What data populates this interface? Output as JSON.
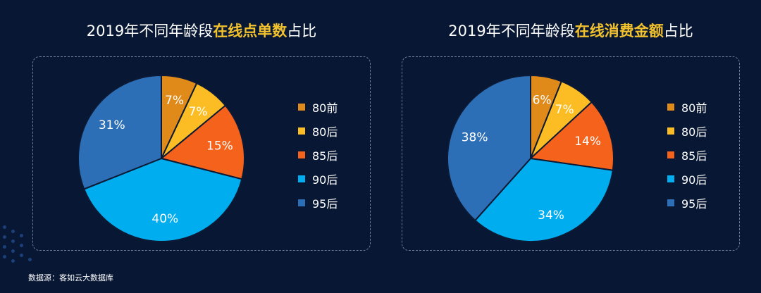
{
  "source": "数据源：客如云大数据库",
  "colors": [
    "#e08a1a",
    "#fbbd23",
    "#f4621b",
    "#00aef0",
    "#2d6fb7"
  ],
  "charts": [
    {
      "title_prefix": "2019年不同年龄段",
      "title_highlight": "在线点单数",
      "title_suffix": "占比"
    },
    {
      "title_prefix": "2019年不同年龄段",
      "title_highlight": "在线消费金额",
      "title_suffix": "占比"
    }
  ],
  "chart_data": [
    {
      "type": "pie",
      "title": "2019年不同年龄段在线点单数占比",
      "categories": [
        "80前",
        "80后",
        "85后",
        "90后",
        "95后"
      ],
      "values": [
        7,
        7,
        15,
        40,
        31
      ],
      "labels": [
        "7%",
        "7%",
        "15%",
        "40%",
        "31%"
      ],
      "legend": "right"
    },
    {
      "type": "pie",
      "title": "2019年不同年龄段在线消费金额占比",
      "categories": [
        "80前",
        "80后",
        "85后",
        "90后",
        "95后"
      ],
      "values": [
        6,
        7,
        14,
        34,
        38
      ],
      "labels": [
        "6%",
        "7%",
        "14%",
        "34%",
        "38%"
      ],
      "legend": "right"
    }
  ]
}
